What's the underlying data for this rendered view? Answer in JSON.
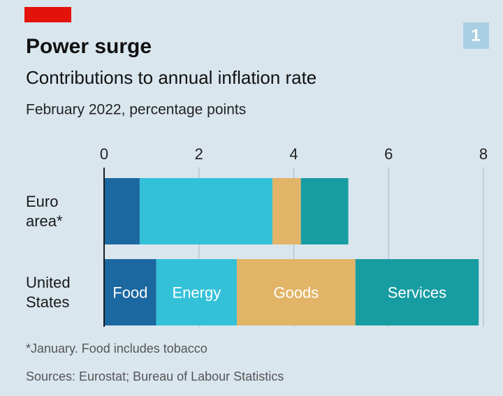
{
  "chart_data": {
    "type": "stacked_barh",
    "title": "Power surge",
    "subtitle": "Contributions to annual inflation rate",
    "unit_note": "February 2022, percentage points",
    "badge": "1",
    "categories": [
      "Euro area*",
      "United States"
    ],
    "series": [
      {
        "name": "Food",
        "color": "#1b67a0",
        "values": [
          0.75,
          1.1
        ]
      },
      {
        "name": "Energy",
        "color": "#33c1d8",
        "values": [
          2.8,
          1.7
        ]
      },
      {
        "name": "Goods",
        "color": "#e2b467",
        "values": [
          0.6,
          2.5
        ]
      },
      {
        "name": "Services",
        "color": "#179ca2",
        "values": [
          1.0,
          2.6
        ]
      }
    ],
    "xlim": [
      0,
      8
    ],
    "xticks": [
      0,
      2,
      4,
      6,
      8
    ],
    "grid": true,
    "footnotes": [
      "*January. Food includes tobacco",
      "Sources: Eurostat; Bureau of Labour Statistics"
    ]
  }
}
